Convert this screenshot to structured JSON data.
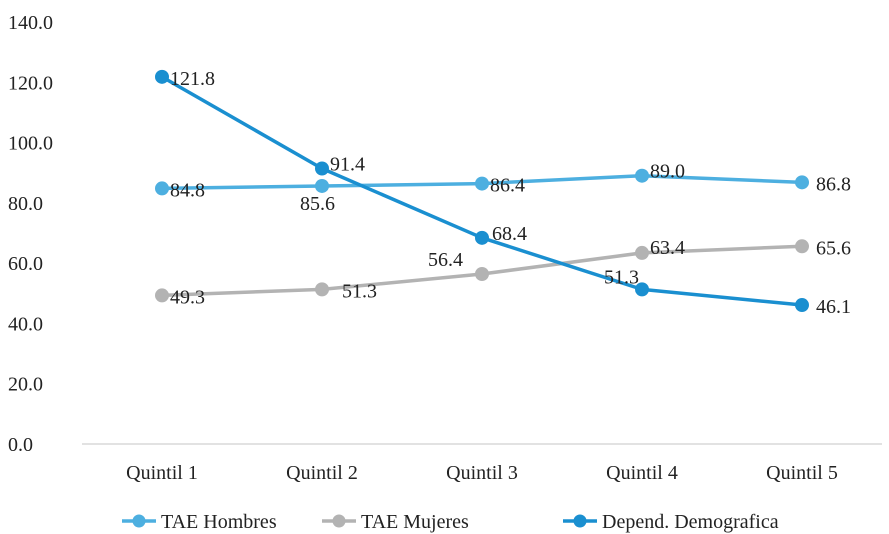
{
  "chart_data": {
    "type": "line",
    "title": "",
    "xlabel": "",
    "ylabel": "",
    "categories": [
      "Quintil 1",
      "Quintil 2",
      "Quintil 3",
      "Quintil 4",
      "Quintil 5"
    ],
    "ylim": [
      0,
      140
    ],
    "yticks": [
      "0.0",
      "20.0",
      "40.0",
      "60.0",
      "80.0",
      "100.0",
      "120.0",
      "140.0"
    ],
    "grid": false,
    "legend_position": "bottom",
    "series": [
      {
        "name": "TAE Hombres",
        "color": "#4dafe0",
        "values": [
          84.8,
          85.6,
          86.4,
          89.0,
          86.8
        ],
        "labels": [
          "84.8",
          "85.6",
          "86.4",
          "89.0",
          "86.8"
        ]
      },
      {
        "name": "TAE Mujeres",
        "color": "#b3b3b3",
        "values": [
          49.3,
          51.3,
          56.4,
          63.4,
          65.6
        ],
        "labels": [
          "49.3",
          "51.3",
          "56.4",
          "63.4",
          "65.6"
        ]
      },
      {
        "name": "Depend. Demografica",
        "color": "#1a8fd0",
        "values": [
          121.8,
          91.4,
          68.4,
          51.3,
          46.1
        ],
        "labels": [
          "121.8",
          "91.4",
          "68.4",
          "51.3",
          "46.1"
        ]
      }
    ]
  }
}
